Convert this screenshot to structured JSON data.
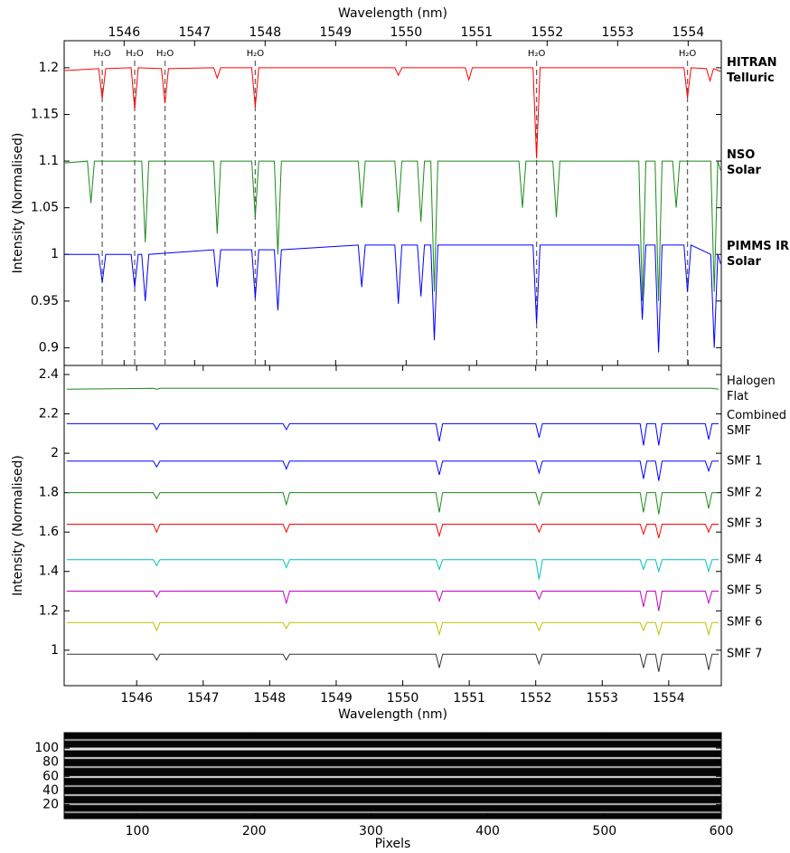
{
  "chart_data": [
    {
      "type": "line",
      "xaxis": "top",
      "label_weight": "bold",
      "xlabel": "Wavelength (nm)",
      "ylabel": "Intensity (Normalised)",
      "xlim": [
        1545.15,
        1554.47
      ],
      "xticks": [
        1546,
        1547,
        1548,
        1549,
        1550,
        1551,
        1552,
        1553,
        1554
      ],
      "ylim": [
        0.881,
        1.229
      ],
      "yticks": [
        0.9,
        0.95,
        1,
        1.05,
        1.1,
        1.15,
        1.2
      ],
      "annotations": [
        {
          "x": 1545.69,
          "label": "H₂O"
        },
        {
          "x": 1546.15,
          "label": "H₂O"
        },
        {
          "x": 1546.58,
          "label": "H₂O"
        },
        {
          "x": 1547.86,
          "label": "H₂O"
        },
        {
          "x": 1551.85,
          "label": "H₂O"
        },
        {
          "x": 1553.99,
          "label": "H₂O"
        }
      ],
      "series": [
        {
          "name": "HITRAN Telluric",
          "color": "#ff0000",
          "x": [
            1545.16,
            1545.64,
            1545.69,
            1545.74,
            1546.1,
            1546.15,
            1546.2,
            1546.53,
            1546.58,
            1546.63,
            1547.27,
            1547.32,
            1547.37,
            1547.81,
            1547.86,
            1547.91,
            1549.84,
            1549.89,
            1549.94,
            1550.84,
            1550.89,
            1550.94,
            1551.8,
            1551.85,
            1551.9,
            1553.94,
            1553.99,
            1554.04,
            1554.26,
            1554.31,
            1554.36,
            1554.46
          ],
          "values": [
            1.197,
            1.199,
            1.167,
            1.199,
            1.2,
            1.156,
            1.2,
            1.199,
            1.162,
            1.199,
            1.2,
            1.189,
            1.2,
            1.2,
            1.158,
            1.2,
            1.2,
            1.192,
            1.2,
            1.2,
            1.187,
            1.2,
            1.2,
            1.103,
            1.2,
            1.2,
            1.168,
            1.2,
            1.199,
            1.186,
            1.199,
            1.196
          ]
        },
        {
          "name": "NSO Solar",
          "color": "#1a8a1a",
          "x": [
            1545.16,
            1545.48,
            1545.53,
            1545.58,
            1546.25,
            1546.3,
            1546.35,
            1547.27,
            1547.32,
            1547.37,
            1547.81,
            1547.86,
            1547.91,
            1548.13,
            1548.18,
            1548.23,
            1549.32,
            1549.37,
            1549.42,
            1549.84,
            1549.89,
            1549.94,
            1550.16,
            1550.21,
            1550.26,
            1550.35,
            1550.4,
            1550.45,
            1551.6,
            1551.65,
            1551.7,
            1552.08,
            1552.13,
            1552.18,
            1553.3,
            1553.35,
            1553.4,
            1553.53,
            1553.58,
            1553.63,
            1553.78,
            1553.83,
            1553.88,
            1554.32,
            1554.37,
            1554.42,
            1554.46
          ],
          "values": [
            1.098,
            1.1,
            1.055,
            1.1,
            1.1,
            1.013,
            1.1,
            1.1,
            1.022,
            1.1,
            1.1,
            1.04,
            1.1,
            1.1,
            1.0,
            1.1,
            1.1,
            1.05,
            1.1,
            1.1,
            1.045,
            1.1,
            1.1,
            1.035,
            1.1,
            1.1,
            0.96,
            1.1,
            1.1,
            1.05,
            1.1,
            1.1,
            1.04,
            1.1,
            1.1,
            0.95,
            1.1,
            1.1,
            0.95,
            1.1,
            1.1,
            1.05,
            1.1,
            1.1,
            0.96,
            1.1,
            1.09
          ]
        },
        {
          "name": "PIMMS IR Solar",
          "color": "#0000ff",
          "x": [
            1545.16,
            1545.64,
            1545.69,
            1545.74,
            1546.1,
            1546.15,
            1546.2,
            1546.25,
            1546.3,
            1546.35,
            1547.27,
            1547.32,
            1547.37,
            1547.81,
            1547.86,
            1547.91,
            1548.13,
            1548.18,
            1548.23,
            1549.32,
            1549.37,
            1549.42,
            1549.84,
            1549.89,
            1549.94,
            1550.16,
            1550.21,
            1550.26,
            1550.35,
            1550.4,
            1550.45,
            1551.8,
            1551.85,
            1551.9,
            1553.3,
            1553.35,
            1553.4,
            1553.53,
            1553.58,
            1553.63,
            1553.94,
            1553.99,
            1554.04,
            1554.32,
            1554.37,
            1554.42,
            1554.46
          ],
          "values": [
            1.0,
            1.0,
            0.97,
            1.0,
            1.0,
            0.965,
            1.0,
            1.0,
            0.95,
            1.0,
            1.005,
            0.965,
            1.005,
            1.005,
            0.953,
            1.005,
            1.005,
            0.94,
            1.005,
            1.01,
            0.965,
            1.01,
            1.01,
            0.947,
            1.01,
            1.01,
            0.955,
            1.01,
            1.01,
            0.908,
            1.01,
            1.01,
            0.926,
            1.01,
            1.01,
            0.93,
            1.01,
            1.01,
            0.895,
            1.01,
            1.01,
            0.96,
            1.01,
            1.0,
            0.9,
            1.0,
            0.99
          ]
        }
      ]
    },
    {
      "type": "line",
      "xaxis": "bottom",
      "label_weight": "normal",
      "xlabel": "Wavelength (nm)",
      "ylabel": "Intensity (Normalised)",
      "xlim": [
        1544.91,
        1554.79
      ],
      "xticks": [
        1546,
        1547,
        1548,
        1549,
        1550,
        1551,
        1552,
        1553,
        1554
      ],
      "ylim": [
        0.82,
        2.446
      ],
      "yticks": [
        1,
        1.2,
        1.4,
        1.6,
        1.8,
        2,
        2.2,
        2.4
      ],
      "x": [
        1544.95,
        1546.25,
        1546.3,
        1546.35,
        1548.2,
        1548.25,
        1548.3,
        1550.5,
        1550.55,
        1550.6,
        1552.0,
        1552.05,
        1552.1,
        1553.57,
        1553.62,
        1553.67,
        1553.8,
        1553.85,
        1553.9,
        1554.55,
        1554.6,
        1554.65,
        1554.75
      ],
      "series": [
        {
          "name": "Halogen Flat",
          "color": "#1a8a1a",
          "values": [
            2.325,
            2.33,
            2.325,
            2.33,
            2.33,
            2.33,
            2.33,
            2.33,
            2.33,
            2.33,
            2.33,
            2.33,
            2.33,
            2.33,
            2.33,
            2.33,
            2.33,
            2.33,
            2.33,
            2.33,
            2.33,
            2.33,
            2.325
          ]
        },
        {
          "name": "Combined SMF",
          "color": "#0000ff",
          "values": [
            2.15,
            2.15,
            2.12,
            2.15,
            2.15,
            2.12,
            2.15,
            2.15,
            2.06,
            2.15,
            2.15,
            2.08,
            2.15,
            2.15,
            2.04,
            2.15,
            2.15,
            2.04,
            2.15,
            2.15,
            2.07,
            2.15,
            2.15
          ]
        },
        {
          "name": "SMF 1",
          "color": "#0000ff",
          "values": [
            1.96,
            1.96,
            1.93,
            1.96,
            1.96,
            1.92,
            1.96,
            1.96,
            1.89,
            1.96,
            1.96,
            1.9,
            1.96,
            1.96,
            1.87,
            1.96,
            1.96,
            1.86,
            1.96,
            1.96,
            1.91,
            1.96,
            1.96
          ]
        },
        {
          "name": "SMF 2",
          "color": "#1a8a1a",
          "values": [
            1.8,
            1.8,
            1.77,
            1.8,
            1.8,
            1.74,
            1.8,
            1.8,
            1.7,
            1.8,
            1.8,
            1.74,
            1.8,
            1.8,
            1.7,
            1.8,
            1.8,
            1.69,
            1.8,
            1.8,
            1.72,
            1.8,
            1.8
          ]
        },
        {
          "name": "SMF 3",
          "color": "#ff0000",
          "values": [
            1.64,
            1.64,
            1.6,
            1.64,
            1.64,
            1.6,
            1.64,
            1.64,
            1.58,
            1.64,
            1.64,
            1.6,
            1.64,
            1.64,
            1.59,
            1.64,
            1.64,
            1.57,
            1.64,
            1.64,
            1.6,
            1.64,
            1.64
          ]
        },
        {
          "name": "SMF 4",
          "color": "#00bfbf",
          "values": [
            1.46,
            1.46,
            1.43,
            1.46,
            1.46,
            1.42,
            1.46,
            1.46,
            1.41,
            1.46,
            1.46,
            1.36,
            1.46,
            1.46,
            1.41,
            1.46,
            1.46,
            1.4,
            1.46,
            1.46,
            1.4,
            1.46,
            1.46
          ]
        },
        {
          "name": "SMF 5",
          "color": "#bf00bf",
          "values": [
            1.3,
            1.3,
            1.27,
            1.3,
            1.3,
            1.24,
            1.3,
            1.3,
            1.25,
            1.3,
            1.3,
            1.26,
            1.3,
            1.3,
            1.22,
            1.3,
            1.3,
            1.2,
            1.3,
            1.3,
            1.24,
            1.3,
            1.3
          ]
        },
        {
          "name": "SMF 6",
          "color": "#bfbf00",
          "values": [
            1.14,
            1.14,
            1.1,
            1.14,
            1.14,
            1.11,
            1.14,
            1.14,
            1.08,
            1.14,
            1.14,
            1.1,
            1.14,
            1.14,
            1.1,
            1.14,
            1.14,
            1.08,
            1.14,
            1.14,
            1.08,
            1.14,
            1.14
          ]
        },
        {
          "name": "SMF 7",
          "color": "#333333",
          "values": [
            0.98,
            0.98,
            0.95,
            0.98,
            0.98,
            0.95,
            0.98,
            0.98,
            0.91,
            0.98,
            0.98,
            0.93,
            0.98,
            0.98,
            0.91,
            0.98,
            0.98,
            0.89,
            0.98,
            0.98,
            0.9,
            0.98,
            0.98
          ]
        }
      ]
    },
    {
      "type": "image",
      "xlabel": "Pixels",
      "xlim": [
        37.3,
        600
      ],
      "xticks": [
        100,
        200,
        300,
        400,
        500,
        600
      ],
      "ylim": [
        0,
        122
      ],
      "yticks": [
        20,
        40,
        60,
        80,
        100
      ]
    }
  ]
}
